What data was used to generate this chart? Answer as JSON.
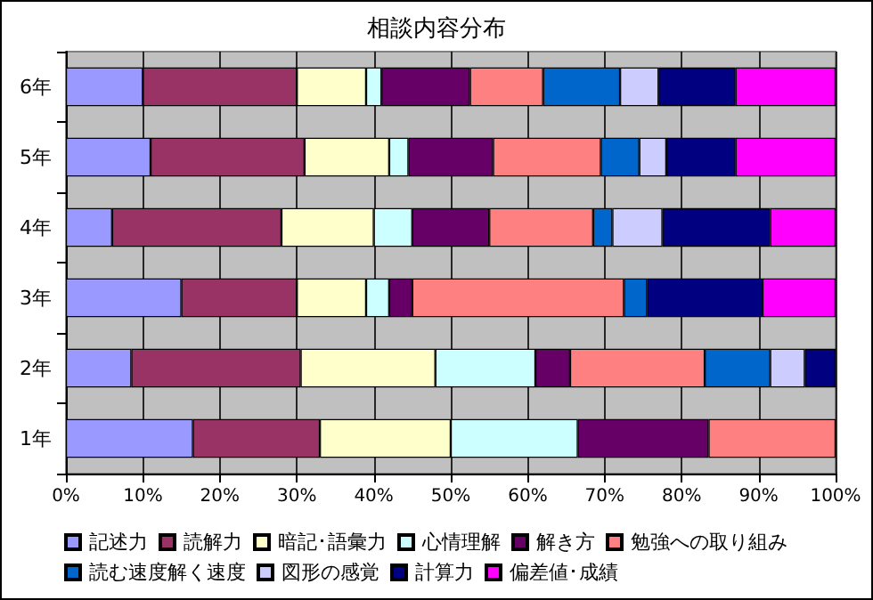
{
  "chart_data": {
    "type": "bar",
    "title": "相談内容分布",
    "orientation": "horizontal",
    "stacked": true,
    "categories": [
      "6年",
      "5年",
      "4年",
      "3年",
      "2年",
      "1年"
    ],
    "series": [
      {
        "name": "記述力",
        "color": "#9999ff",
        "values": [
          10,
          11,
          6,
          15,
          8.5,
          16.5
        ]
      },
      {
        "name": "読解力",
        "color": "#993366",
        "values": [
          20,
          20,
          22,
          15,
          22,
          16.5
        ]
      },
      {
        "name": "暗記･語彙力",
        "color": "#ffffcc",
        "values": [
          9,
          11,
          12,
          9,
          17.5,
          17
        ]
      },
      {
        "name": "心情理解",
        "color": "#ccffff",
        "values": [
          2,
          2.5,
          5,
          3,
          13,
          16.5
        ]
      },
      {
        "name": "解き方",
        "color": "#660066",
        "values": [
          11.5,
          11,
          10,
          3,
          4.5,
          17
        ]
      },
      {
        "name": "勉強への取り組み",
        "color": "#ff8080",
        "values": [
          9.5,
          14,
          13.5,
          27.5,
          17.5,
          16.5
        ]
      },
      {
        "name": "読む速度解く速度",
        "color": "#0066cc",
        "values": [
          10,
          5,
          2.5,
          3,
          8.5,
          null
        ]
      },
      {
        "name": "図形の感覚",
        "color": "#ccccff",
        "values": [
          5,
          3.5,
          6.5,
          null,
          4.5,
          null
        ]
      },
      {
        "name": "計算力",
        "color": "#000080",
        "values": [
          10,
          9,
          14,
          15,
          4,
          null
        ]
      },
      {
        "name": "偏差値･成績",
        "color": "#ff00ff",
        "values": [
          13,
          13,
          8.5,
          9.5,
          null,
          null
        ]
      }
    ],
    "xlim": [
      0,
      100
    ],
    "xticks": [
      {
        "value": 0,
        "label": "0%"
      },
      {
        "value": 10,
        "label": "10%"
      },
      {
        "value": 20,
        "label": "20%"
      },
      {
        "value": 30,
        "label": "30%"
      },
      {
        "value": 40,
        "label": "40%"
      },
      {
        "value": 50,
        "label": "50%"
      },
      {
        "value": 60,
        "label": "60%"
      },
      {
        "value": 70,
        "label": "70%"
      },
      {
        "value": 80,
        "label": "80%"
      },
      {
        "value": 90,
        "label": "90%"
      },
      {
        "value": 100,
        "label": "100%"
      }
    ],
    "grid": "x",
    "legend": "bottom"
  }
}
